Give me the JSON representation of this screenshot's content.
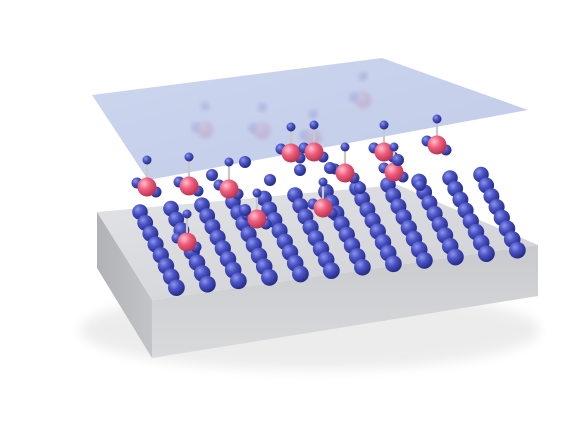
{
  "scene": {
    "description_free": true,
    "colors": {
      "background": "#ffffff",
      "slab_top": "#d8d9dc",
      "slab_front": "#c6c7ca",
      "slab_side": "#b4b5b8",
      "sheet": "#b9c6e6",
      "atom_blue": "#3f49b5",
      "atom_red": "#ef5a78",
      "bond": "#d9d9d9"
    },
    "surface_atom_count": 96,
    "molecule_count": 14
  }
}
